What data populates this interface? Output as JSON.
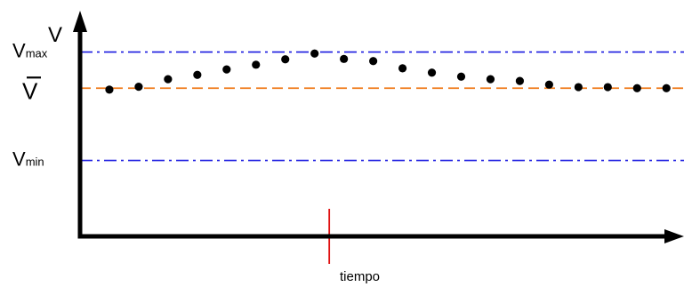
{
  "chart_data": {
    "type": "scatter",
    "y_axis_label": "V",
    "x_axis_label": "tiempo",
    "reference_lines": {
      "vmax": {
        "label_main": "V",
        "label_sub": "max",
        "value": 2.0,
        "color": "#1a1ae0",
        "style": "dash-dot"
      },
      "vmean": {
        "label_main": "V",
        "value": 1.0,
        "color": "#f07a1a",
        "style": "dashed",
        "overline": true
      },
      "vmin": {
        "label_main": "V",
        "label_sub": "min",
        "value": -1.0,
        "color": "#1a1ae0",
        "style": "dash-dot"
      }
    },
    "marker_x": 8.5,
    "x": [
      1,
      2,
      3,
      4,
      5,
      6,
      7,
      8,
      9,
      10,
      11,
      12,
      13,
      14,
      15,
      16,
      17,
      18,
      19,
      20
    ],
    "y": [
      0.96,
      1.04,
      1.25,
      1.37,
      1.52,
      1.65,
      1.8,
      1.96,
      1.81,
      1.75,
      1.55,
      1.43,
      1.32,
      1.25,
      1.2,
      1.1,
      1.03,
      1.03,
      1.0,
      1.0
    ],
    "ylim": [
      -3.1,
      2.9
    ],
    "xlim": [
      0,
      20.6
    ]
  }
}
